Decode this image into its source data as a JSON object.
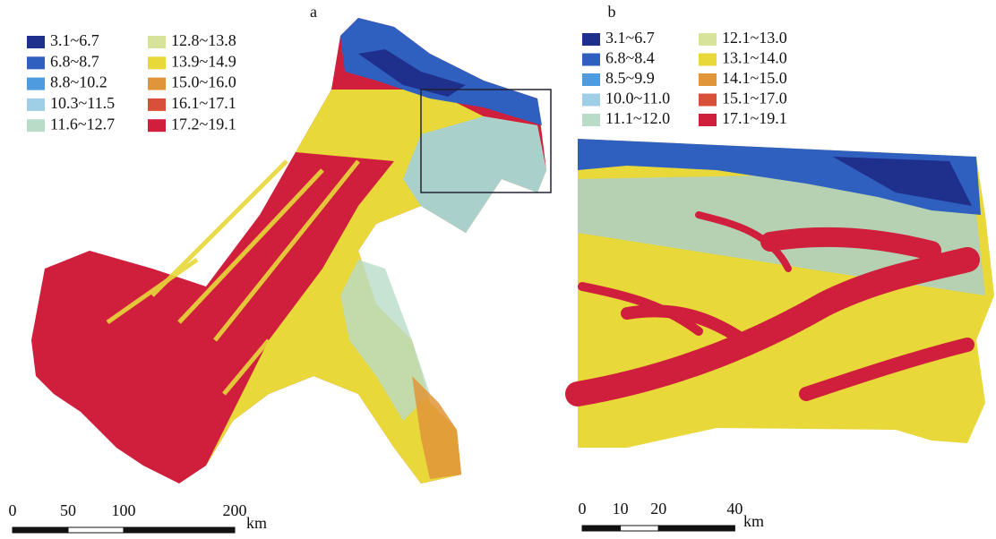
{
  "panels": [
    {
      "label": "a",
      "legend": [
        {
          "label": "3.1~6.7",
          "color": "#1f2f8c"
        },
        {
          "label": "6.8~8.7",
          "color": "#2f5fbf"
        },
        {
          "label": "8.8~10.2",
          "color": "#4f9be0"
        },
        {
          "label": "10.3~11.5",
          "color": "#9fcfe6"
        },
        {
          "label": "11.6~12.7",
          "color": "#b9dcc8"
        },
        {
          "label": "12.8~13.8",
          "color": "#d7e39a"
        },
        {
          "label": "13.9~14.9",
          "color": "#e8d83a"
        },
        {
          "label": "15.0~16.0",
          "color": "#e0953a"
        },
        {
          "label": "16.1~17.1",
          "color": "#d9503a"
        },
        {
          "label": "17.2~19.1",
          "color": "#cf1f3c"
        }
      ],
      "scale": {
        "ticks": [
          0,
          50,
          100,
          200
        ],
        "unit": "km"
      }
    },
    {
      "label": "b",
      "legend": [
        {
          "label": "3.1~6.7",
          "color": "#1f2f8c"
        },
        {
          "label": "6.8~8.4",
          "color": "#2f5fbf"
        },
        {
          "label": "8.5~9.9",
          "color": "#4f9be0"
        },
        {
          "label": "10.0~11.0",
          "color": "#9fcfe6"
        },
        {
          "label": "11.1~12.0",
          "color": "#b9dcc8"
        },
        {
          "label": "12.1~13.0",
          "color": "#d7e39a"
        },
        {
          "label": "13.1~14.0",
          "color": "#e8d83a"
        },
        {
          "label": "14.1~15.0",
          "color": "#e0953a"
        },
        {
          "label": "15.1~17.0",
          "color": "#d9503a"
        },
        {
          "label": "17.1~19.1",
          "color": "#cf1f3c"
        }
      ],
      "scale": {
        "ticks": [
          0,
          10,
          20,
          40
        ],
        "unit": "km"
      }
    }
  ]
}
